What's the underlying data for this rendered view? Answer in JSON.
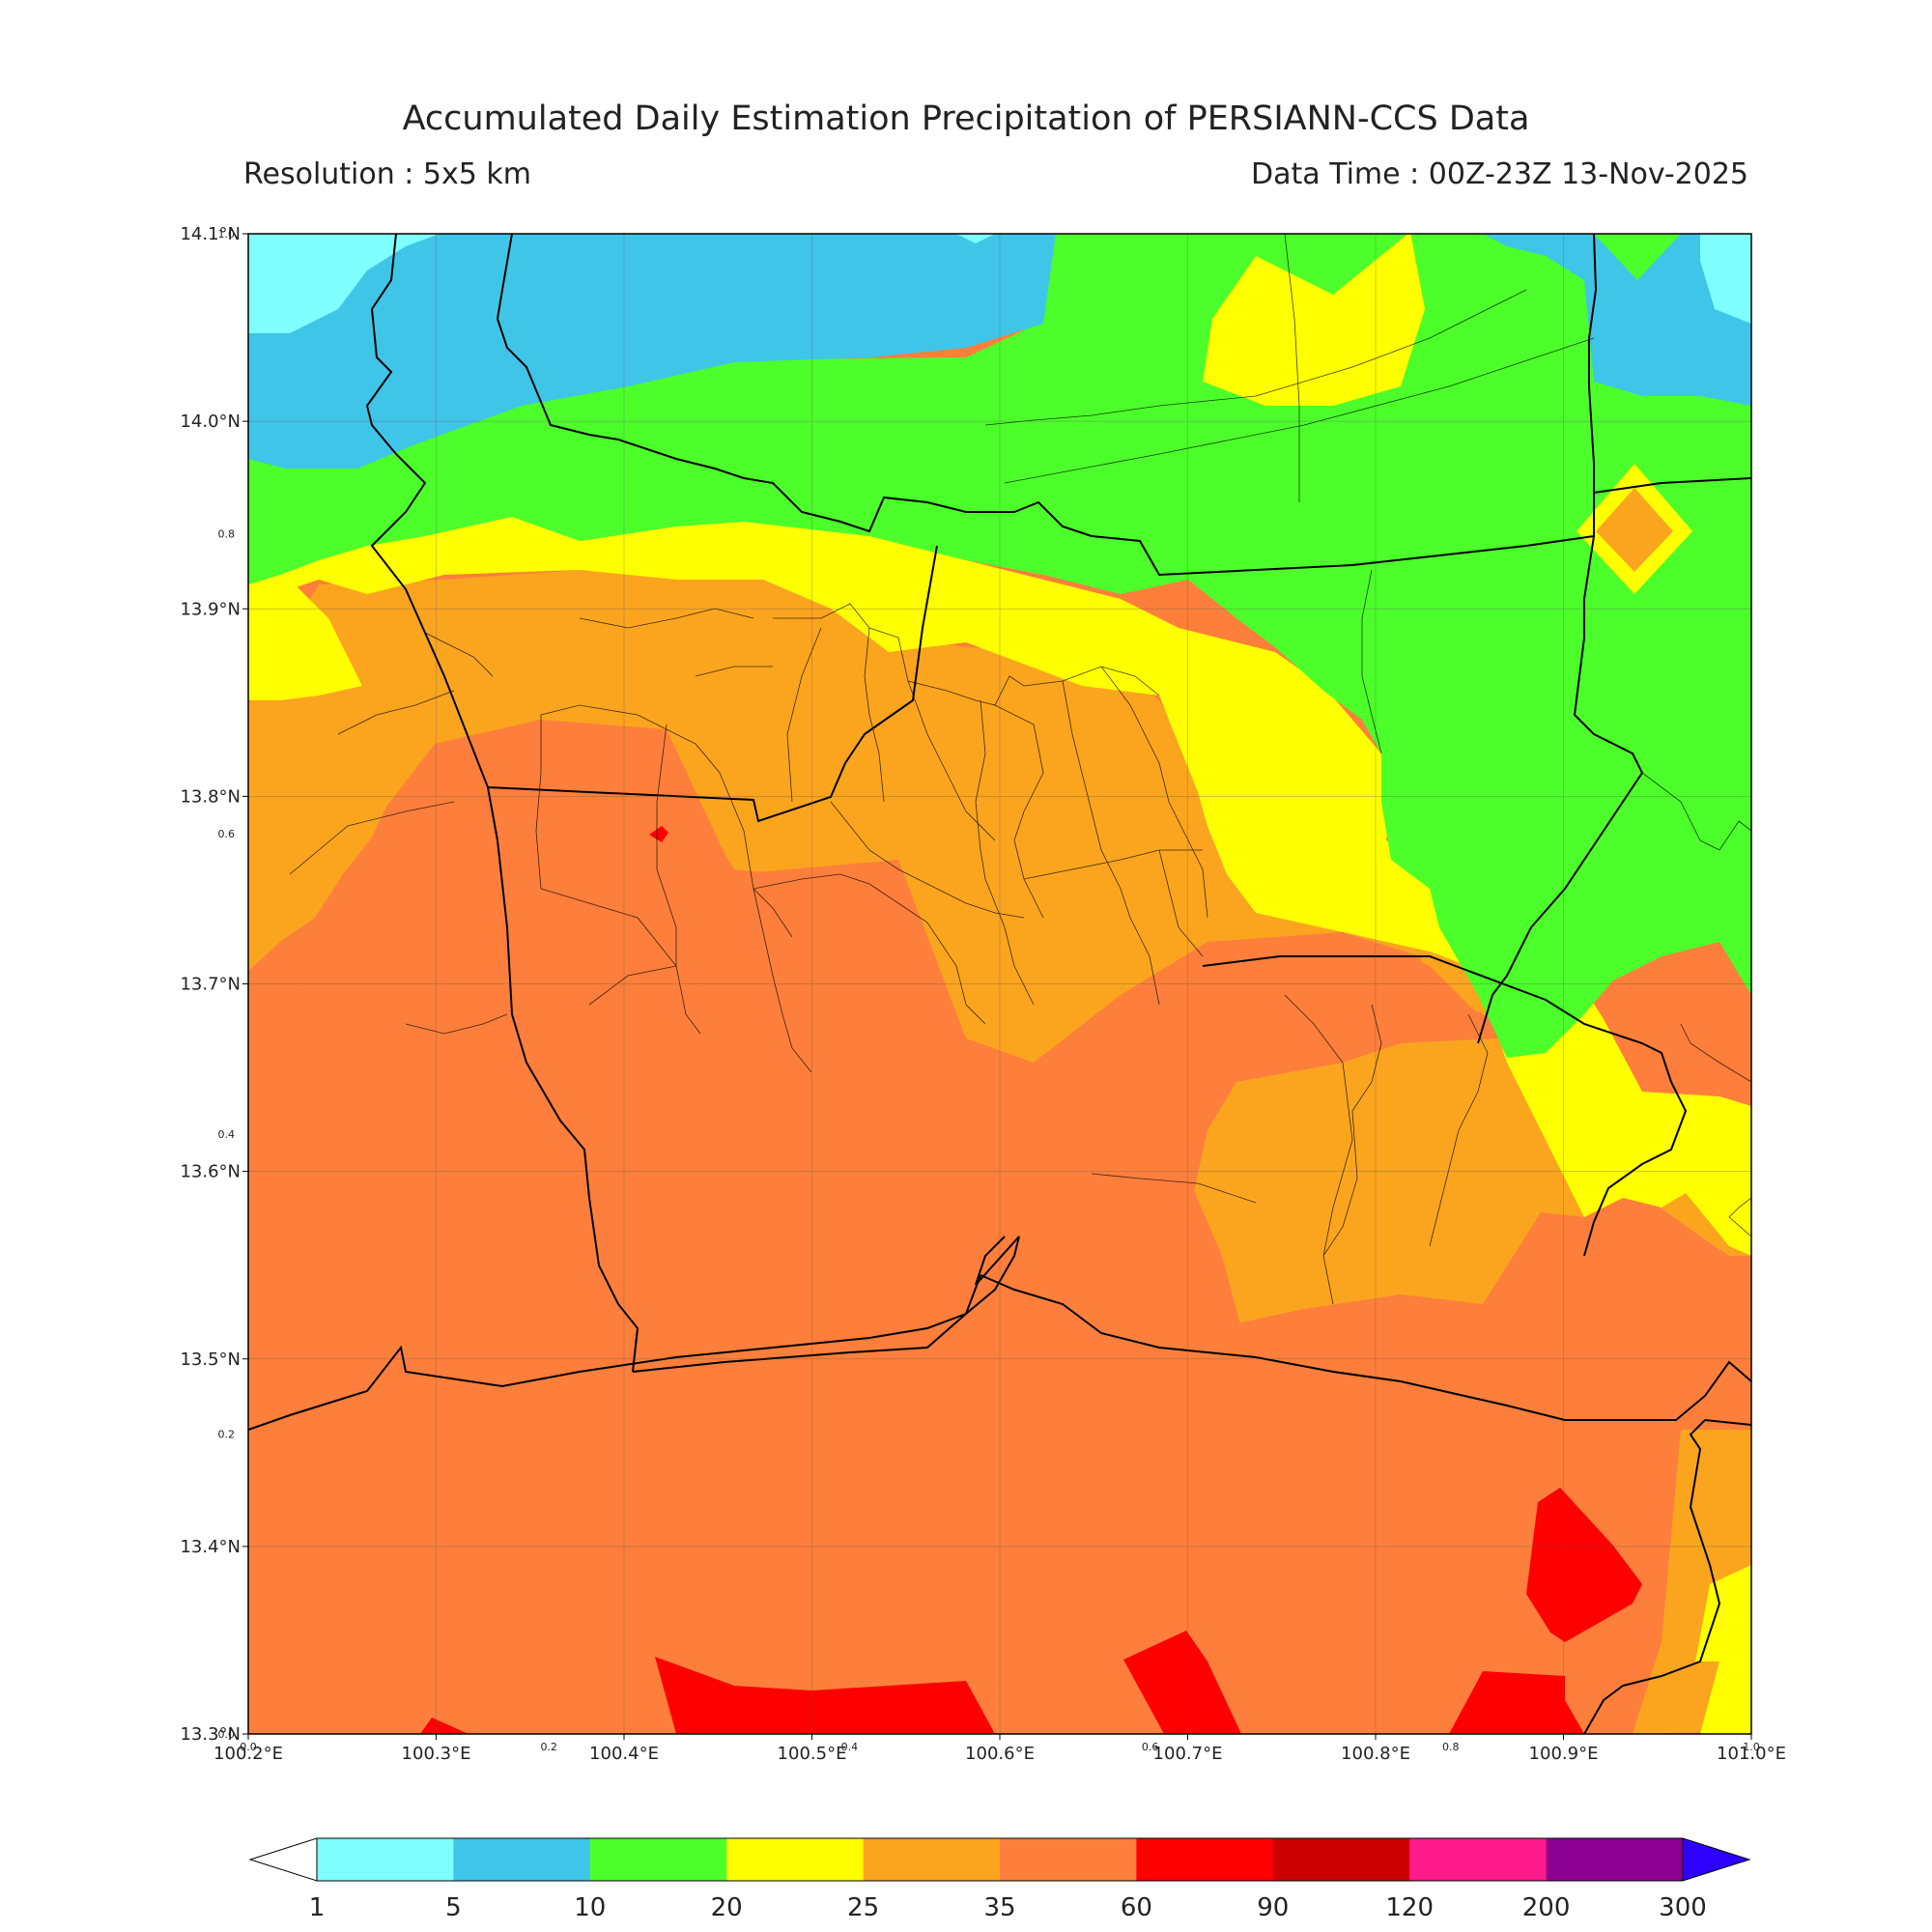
{
  "header": {
    "title": "Accumulated Daily Estimation Precipitation of PERSIANN-CCS Data",
    "resolution": "Resolution : 5x5 km",
    "data_time": "Data Time : 00Z-23Z 13-Nov-2025"
  },
  "map": {
    "lon_range": [
      100.2,
      101.0
    ],
    "lat_range": [
      13.3,
      14.1
    ],
    "lon_ticks": [
      {
        "v": 100.2,
        "label": "100.2°E"
      },
      {
        "v": 100.3,
        "label": "100.3°E"
      },
      {
        "v": 100.4,
        "label": "100.4°E"
      },
      {
        "v": 100.5,
        "label": "100.5°E"
      },
      {
        "v": 100.6,
        "label": "100.6°E"
      },
      {
        "v": 100.7,
        "label": "100.7°E"
      },
      {
        "v": 100.8,
        "label": "100.8°E"
      },
      {
        "v": 100.9,
        "label": "100.9°E"
      },
      {
        "v": 101.0,
        "label": "101.0°E"
      }
    ],
    "lat_ticks": [
      {
        "v": 13.3,
        "label": "13.3°N"
      },
      {
        "v": 13.4,
        "label": "13.4°N"
      },
      {
        "v": 13.5,
        "label": "13.5°N"
      },
      {
        "v": 13.6,
        "label": "13.6°N"
      },
      {
        "v": 13.7,
        "label": "13.7°N"
      },
      {
        "v": 13.8,
        "label": "13.8°N"
      },
      {
        "v": 13.9,
        "label": "13.9°N"
      },
      {
        "v": 14.0,
        "label": "14.0°N"
      },
      {
        "v": 14.1,
        "label": "14.1°N"
      }
    ],
    "minor_x_labels": [
      "0.0",
      "0.2",
      "0.4",
      "0.6",
      "0.8",
      "1.0"
    ],
    "minor_y_labels": [
      "0.0",
      "0.2",
      "0.4",
      "0.6",
      "0.8",
      "1.0"
    ],
    "grid": true
  },
  "colorbar": {
    "levels": [
      "1",
      "5",
      "10",
      "20",
      "25",
      "35",
      "60",
      "90",
      "120",
      "200",
      "300"
    ],
    "colors": [
      "#7fffff",
      "#3fc5e8",
      "#4cff2a",
      "#ffff00",
      "#fba51f",
      "#fd7f3b",
      "#ff0000",
      "#cc0000",
      "#ff1a8c",
      "#8c0091"
    ],
    "under_color": "#ffffff",
    "over_color": "#2d00ff"
  },
  "legend_colors": {
    "c1": "#7fffff",
    "c5": "#3fc5e8",
    "c10": "#4cff2a",
    "c20": "#ffff00",
    "c25": "#fba51f",
    "c35": "#fd7f3b",
    "c60": "#ff0000"
  }
}
